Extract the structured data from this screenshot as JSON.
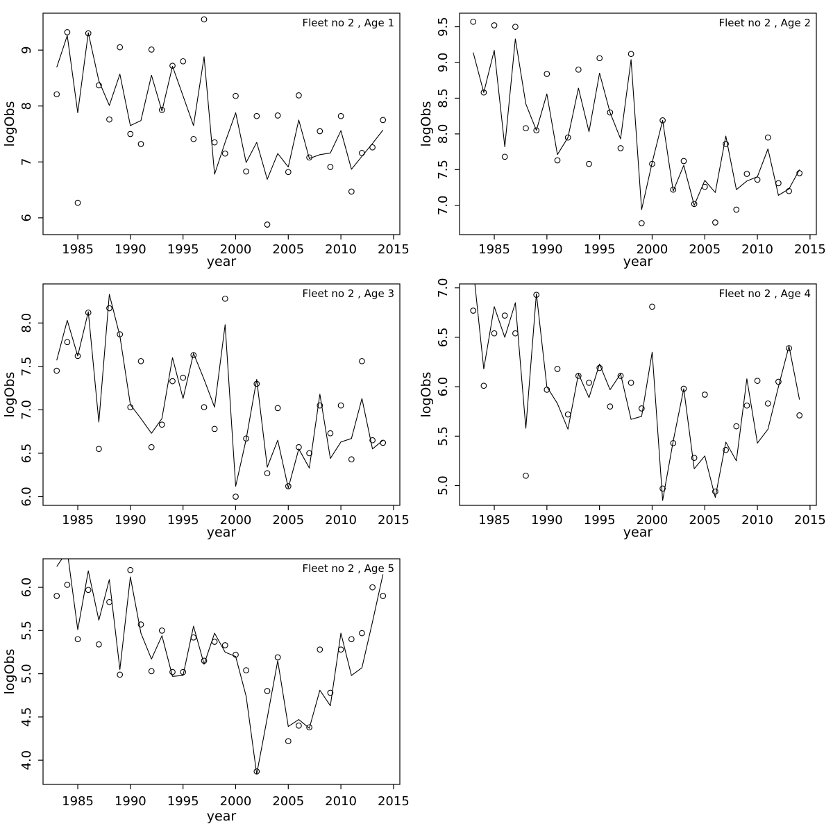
{
  "figure": {
    "background_color": "#ffffff",
    "stroke_color": "#000000",
    "xlabel": "year",
    "ylabel": "logObs",
    "xticks": [
      1985,
      1990,
      1995,
      2000,
      2005,
      2010,
      2015
    ],
    "years": [
      1983,
      1984,
      1985,
      1986,
      1987,
      1988,
      1989,
      1990,
      1991,
      1992,
      1993,
      1994,
      1995,
      1996,
      1997,
      1998,
      1999,
      2000,
      2001,
      2002,
      2003,
      2004,
      2005,
      2006,
      2007,
      2008,
      2009,
      2010,
      2011,
      2012,
      2013,
      2014
    ]
  },
  "chart_data": [
    {
      "type": "line",
      "title": "Fleet no 2 , Age 1",
      "xlabel": "year",
      "ylabel": "logObs",
      "x": [
        1983,
        1984,
        1985,
        1986,
        1987,
        1988,
        1989,
        1990,
        1991,
        1992,
        1993,
        1994,
        1995,
        1996,
        1997,
        1998,
        1999,
        2000,
        2001,
        2002,
        2003,
        2004,
        2005,
        2006,
        2007,
        2008,
        2009,
        2010,
        2011,
        2012,
        2013,
        2014
      ],
      "series": [
        {
          "name": "observed",
          "marker": "circle",
          "values": [
            8.21,
            9.32,
            6.27,
            9.3,
            8.37,
            7.76,
            9.05,
            7.5,
            7.32,
            9.01,
            7.93,
            8.72,
            8.8,
            7.41,
            9.55,
            7.35,
            7.15,
            8.18,
            6.83,
            7.82,
            5.88,
            7.83,
            6.82,
            8.19,
            7.08,
            7.55,
            6.91,
            7.82,
            6.47,
            7.16,
            7.26,
            7.75
          ]
        },
        {
          "name": "predicted",
          "marker": "line",
          "values": [
            8.69,
            9.26,
            7.88,
            9.31,
            8.45,
            8.01,
            8.57,
            7.65,
            7.74,
            8.55,
            7.91,
            8.71,
            8.18,
            7.65,
            8.88,
            6.78,
            7.35,
            7.88,
            6.99,
            7.35,
            6.69,
            7.15,
            6.91,
            7.75,
            7.06,
            7.13,
            7.16,
            7.56,
            6.87,
            7.1,
            7.33,
            7.57
          ]
        }
      ],
      "xlim": [
        1981.7,
        2015.6
      ],
      "ylim": [
        5.7,
        9.66
      ],
      "yticks": [
        6,
        7,
        8,
        9
      ],
      "ytick_labels": [
        "6",
        "7",
        "8",
        "9"
      ],
      "grid": false,
      "legend": "none",
      "title_position": "top-right"
    },
    {
      "type": "line",
      "title": "Fleet no 2 , Age 2",
      "xlabel": "year",
      "ylabel": "logObs",
      "x": [
        1983,
        1984,
        1985,
        1986,
        1987,
        1988,
        1989,
        1990,
        1991,
        1992,
        1993,
        1994,
        1995,
        1996,
        1997,
        1998,
        1999,
        2000,
        2001,
        2002,
        2003,
        2004,
        2005,
        2006,
        2007,
        2008,
        2009,
        2010,
        2011,
        2012,
        2013,
        2014
      ],
      "series": [
        {
          "name": "observed",
          "marker": "circle",
          "values": [
            9.57,
            8.58,
            9.52,
            7.68,
            9.5,
            8.08,
            8.05,
            8.84,
            7.63,
            7.95,
            8.9,
            7.58,
            9.06,
            8.3,
            7.8,
            9.12,
            6.75,
            7.58,
            8.19,
            7.22,
            7.62,
            7.02,
            7.26,
            6.76,
            7.86,
            6.94,
            7.44,
            7.36,
            7.95,
            7.31,
            7.2,
            7.45
          ]
        },
        {
          "name": "predicted",
          "marker": "line",
          "values": [
            9.14,
            8.58,
            9.17,
            7.82,
            9.33,
            8.42,
            8.05,
            8.56,
            7.71,
            7.95,
            8.64,
            8.03,
            8.85,
            8.3,
            7.93,
            9.04,
            6.94,
            7.6,
            8.19,
            7.2,
            7.56,
            7.0,
            7.35,
            7.18,
            7.97,
            7.22,
            7.34,
            7.4,
            7.79,
            7.14,
            7.23,
            7.5
          ]
        }
      ],
      "xlim": [
        1981.7,
        2015.6
      ],
      "ylim": [
        6.59,
        9.69
      ],
      "yticks": [
        7.0,
        7.5,
        8.0,
        8.5,
        9.0,
        9.5
      ],
      "ytick_labels": [
        "7.0",
        "7.5",
        "8.0",
        "8.5",
        "9.0",
        "9.5"
      ],
      "grid": false,
      "legend": "none",
      "title_position": "top-right"
    },
    {
      "type": "line",
      "title": "Fleet no 2 , Age 3",
      "xlabel": "year",
      "ylabel": "logObs",
      "x": [
        1983,
        1984,
        1985,
        1986,
        1987,
        1988,
        1989,
        1990,
        1991,
        1992,
        1993,
        1994,
        1995,
        1996,
        1997,
        1998,
        1999,
        2000,
        2001,
        2002,
        2003,
        2004,
        2005,
        2006,
        2007,
        2008,
        2009,
        2010,
        2011,
        2012,
        2013,
        2014
      ],
      "series": [
        {
          "name": "observed",
          "marker": "circle",
          "values": [
            7.45,
            7.78,
            7.62,
            8.12,
            6.55,
            8.17,
            7.87,
            7.03,
            7.56,
            6.57,
            6.83,
            7.33,
            7.37,
            7.63,
            7.03,
            6.78,
            8.28,
            6.0,
            6.67,
            7.3,
            6.27,
            7.02,
            6.12,
            6.57,
            6.5,
            7.05,
            6.73,
            7.05,
            6.43,
            7.56,
            6.65,
            6.62
          ]
        },
        {
          "name": "predicted",
          "marker": "line",
          "values": [
            7.57,
            8.03,
            7.62,
            8.13,
            6.86,
            8.33,
            7.85,
            7.06,
            6.9,
            6.73,
            6.9,
            7.6,
            7.13,
            7.65,
            7.35,
            7.03,
            7.98,
            6.12,
            6.66,
            7.35,
            6.34,
            6.65,
            6.1,
            6.55,
            6.33,
            7.18,
            6.44,
            6.63,
            6.67,
            7.13,
            6.55,
            6.65
          ]
        }
      ],
      "xlim": [
        1981.7,
        2015.6
      ],
      "ylim": [
        5.9,
        8.45
      ],
      "yticks": [
        6.0,
        6.5,
        7.0,
        7.5,
        8.0
      ],
      "ytick_labels": [
        "6.0",
        "6.5",
        "7.0",
        "7.5",
        "8.0"
      ],
      "grid": false,
      "legend": "none",
      "title_position": "top-right"
    },
    {
      "type": "line",
      "title": "Fleet no 2 , Age 4",
      "xlabel": "year",
      "ylabel": "logObs",
      "x": [
        1983,
        1984,
        1985,
        1986,
        1987,
        1988,
        1989,
        1990,
        1991,
        1992,
        1993,
        1994,
        1995,
        1996,
        1997,
        1998,
        1999,
        2000,
        2001,
        2002,
        2003,
        2004,
        2005,
        2006,
        2007,
        2008,
        2009,
        2010,
        2011,
        2012,
        2013,
        2014
      ],
      "series": [
        {
          "name": "observed",
          "marker": "circle",
          "values": [
            6.77,
            6.01,
            6.54,
            6.72,
            6.54,
            5.1,
            6.93,
            5.97,
            6.18,
            5.72,
            6.11,
            6.04,
            6.19,
            5.8,
            6.11,
            6.04,
            5.78,
            6.81,
            4.97,
            5.43,
            5.98,
            5.28,
            5.92,
            4.94,
            5.36,
            5.6,
            5.81,
            6.06,
            5.83,
            6.05,
            6.39,
            5.71
          ]
        },
        {
          "name": "predicted",
          "marker": "line",
          "values": [
            7.2,
            6.18,
            6.81,
            6.5,
            6.85,
            5.58,
            6.94,
            6.0,
            5.83,
            5.57,
            6.13,
            5.89,
            6.23,
            5.97,
            6.13,
            5.67,
            5.7,
            6.35,
            4.85,
            5.45,
            5.98,
            5.17,
            5.3,
            4.88,
            5.44,
            5.25,
            6.08,
            5.43,
            5.57,
            6.0,
            6.41,
            5.87
          ]
        }
      ],
      "xlim": [
        1981.7,
        2015.6
      ],
      "ylim": [
        4.8,
        7.04
      ],
      "yticks": [
        5.0,
        5.5,
        6.0,
        6.5,
        7.0
      ],
      "ytick_labels": [
        "5.0",
        "5.5",
        "6.0",
        "6.5",
        "7.0"
      ],
      "grid": false,
      "legend": "none",
      "title_position": "top-right"
    },
    {
      "type": "line",
      "title": "Fleet no 2 , Age 5",
      "xlabel": "year",
      "ylabel": "logObs",
      "x": [
        1983,
        1984,
        1985,
        1986,
        1987,
        1988,
        1989,
        1990,
        1991,
        1992,
        1993,
        1994,
        1995,
        1996,
        1997,
        1998,
        1999,
        2000,
        2001,
        2002,
        2003,
        2004,
        2005,
        2006,
        2007,
        2008,
        2009,
        2010,
        2011,
        2012,
        2013,
        2014
      ],
      "series": [
        {
          "name": "observed",
          "marker": "circle",
          "values": [
            5.9,
            6.03,
            5.4,
            5.97,
            5.34,
            5.83,
            4.99,
            6.2,
            5.57,
            5.03,
            5.5,
            5.02,
            5.02,
            5.42,
            5.15,
            5.37,
            5.33,
            5.22,
            5.04,
            3.87,
            4.8,
            5.19,
            4.22,
            4.4,
            4.38,
            5.28,
            4.78,
            5.28,
            5.4,
            5.47,
            6.0,
            5.9
          ]
        },
        {
          "name": "predicted",
          "marker": "line",
          "values": [
            6.24,
            6.42,
            5.51,
            6.19,
            5.62,
            6.09,
            5.05,
            6.12,
            5.47,
            5.17,
            5.44,
            4.97,
            4.98,
            5.55,
            5.11,
            5.47,
            5.25,
            5.2,
            4.74,
            3.84,
            4.49,
            5.15,
            4.39,
            4.47,
            4.37,
            4.81,
            4.63,
            5.47,
            4.98,
            5.07,
            5.6,
            6.15
          ]
        }
      ],
      "xlim": [
        1981.7,
        2015.6
      ],
      "ylim": [
        3.72,
        6.33
      ],
      "yticks": [
        4.0,
        4.5,
        5.0,
        5.5,
        6.0
      ],
      "ytick_labels": [
        "4.0",
        "4.5",
        "5.0",
        "5.5",
        "6.0"
      ],
      "grid": false,
      "legend": "none",
      "title_position": "top-right"
    }
  ]
}
